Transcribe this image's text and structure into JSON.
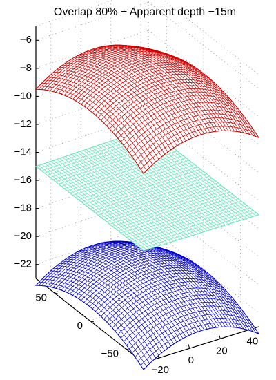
{
  "chart_data": {
    "type": "surface",
    "title": "Overlap 80% − Apparent depth −15m",
    "z_ticks": [
      "−6",
      "−8",
      "−10",
      "−12",
      "−14",
      "−16",
      "−18",
      "−20",
      "−22"
    ],
    "z_tick_values": [
      -6,
      -8,
      -10,
      -12,
      -14,
      -16,
      -18,
      -20,
      -22
    ],
    "y_ticks": [
      "50",
      "0",
      "−50"
    ],
    "y_tick_values": [
      50,
      0,
      -50
    ],
    "x_ticks": [
      "−20",
      "0",
      "20",
      "40"
    ],
    "x_tick_values": [
      -20,
      0,
      20,
      40
    ],
    "xlim": [
      -30,
      45
    ],
    "ylim": [
      -75,
      75
    ],
    "zlim": [
      -23,
      -5
    ],
    "grid": true,
    "surfaces": [
      {
        "shape": "dome",
        "z_peak": -6.5,
        "z_edge": -9.5,
        "color": "#cc0000"
      },
      {
        "shape": "plane",
        "z_peak": -15,
        "z_edge": -15,
        "color": "#5fe6b4"
      },
      {
        "shape": "dome",
        "z_peak": -20.5,
        "z_edge": -23.5,
        "color": "#0000cc"
      }
    ]
  }
}
